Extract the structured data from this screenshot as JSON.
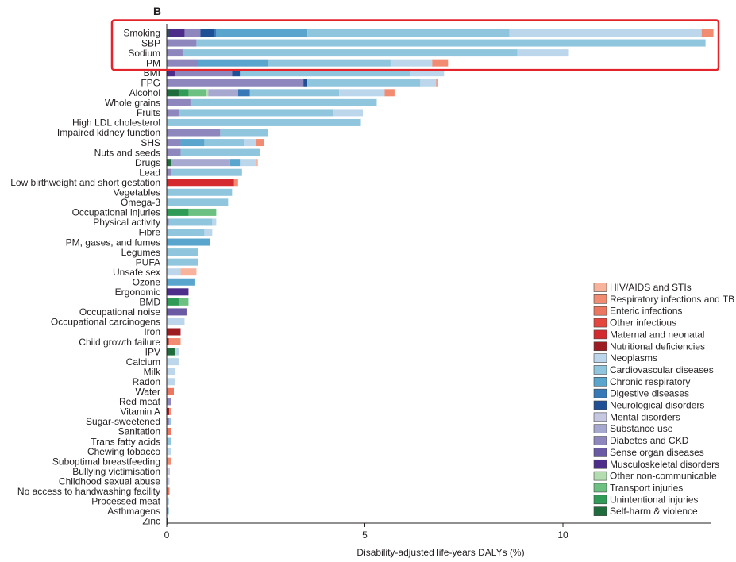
{
  "panel_label": "B",
  "chart_data": {
    "type": "bar",
    "stacked": true,
    "orientation": "horizontal",
    "xlabel": "Disability-adjusted life-years DALYs (%)",
    "xlim": [
      0,
      13.8
    ],
    "xticks": [
      0,
      5,
      10
    ],
    "grid": false,
    "legend_position": "bottom-right",
    "highlight": {
      "rows": [
        "Smoking",
        "SBP",
        "Sodium",
        "PM"
      ],
      "color": "#e3242b"
    },
    "causes": [
      {
        "name": "HIV/AIDS and STIs",
        "color": "#f7b39c"
      },
      {
        "name": "Respiratory infections and TB",
        "color": "#f18c73"
      },
      {
        "name": "Enteric infections",
        "color": "#ec7761"
      },
      {
        "name": "Other infectious",
        "color": "#e4453c"
      },
      {
        "name": "Maternal and neonatal",
        "color": "#d42a2f"
      },
      {
        "name": "Nutritional deficiencies",
        "color": "#9d1c22"
      },
      {
        "name": "Neoplasms",
        "color": "#bcd7ec"
      },
      {
        "name": "Cardiovascular diseases",
        "color": "#90c6dd"
      },
      {
        "name": "Chronic respiratory",
        "color": "#5aa5cd"
      },
      {
        "name": "Digestive diseases",
        "color": "#3779b6"
      },
      {
        "name": "Neurological disorders",
        "color": "#1f4f95"
      },
      {
        "name": "Mental disorders",
        "color": "#c6c8e2"
      },
      {
        "name": "Substance use",
        "color": "#a7a8d0"
      },
      {
        "name": "Diabetes and CKD",
        "color": "#8e87bd"
      },
      {
        "name": "Sense organ diseases",
        "color": "#6a5aa4"
      },
      {
        "name": "Musculoskeletal disorders",
        "color": "#4d2c8a"
      },
      {
        "name": "Other non-communicable",
        "color": "#b3dcb1"
      },
      {
        "name": "Transport injuries",
        "color": "#6cc182"
      },
      {
        "name": "Unintentional injuries",
        "color": "#2f9b57"
      },
      {
        "name": "Self-harm & violence",
        "color": "#1f6b3b"
      }
    ],
    "risks": [
      {
        "name": "Smoking",
        "segments": [
          [
            "Self-harm & violence",
            0.05
          ],
          [
            "Musculoskeletal disorders",
            0.4
          ],
          [
            "Diabetes and CKD",
            0.4
          ],
          [
            "Neurological disorders",
            0.35
          ],
          [
            "Digestive diseases",
            0.05
          ],
          [
            "Chronic respiratory",
            2.3
          ],
          [
            "Cardiovascular diseases",
            5.1
          ],
          [
            "Neoplasms",
            4.85
          ],
          [
            "Respiratory infections and TB",
            0.3
          ]
        ]
      },
      {
        "name": "SBP",
        "segments": [
          [
            "Diabetes and CKD",
            0.75
          ],
          [
            "Cardiovascular diseases",
            12.85
          ]
        ]
      },
      {
        "name": "Sodium",
        "segments": [
          [
            "Diabetes and CKD",
            0.4
          ],
          [
            "Cardiovascular diseases",
            8.45
          ],
          [
            "Neoplasms",
            1.3
          ]
        ]
      },
      {
        "name": "PM",
        "segments": [
          [
            "Diabetes and CKD",
            0.8
          ],
          [
            "Chronic respiratory",
            1.75
          ],
          [
            "Cardiovascular diseases",
            3.1
          ],
          [
            "Neoplasms",
            1.05
          ],
          [
            "Respiratory infections and TB",
            0.4
          ]
        ]
      },
      {
        "name": "BMI",
        "segments": [
          [
            "Musculoskeletal disorders",
            0.2
          ],
          [
            "Diabetes and CKD",
            1.45
          ],
          [
            "Neurological disorders",
            0.2
          ],
          [
            "Cardiovascular diseases",
            4.3
          ],
          [
            "Neoplasms",
            0.85
          ]
        ]
      },
      {
        "name": "FPG",
        "segments": [
          [
            "Diabetes and CKD",
            3.45
          ],
          [
            "Neurological disorders",
            0.1
          ],
          [
            "Cardiovascular diseases",
            2.85
          ],
          [
            "Neoplasms",
            0.4
          ],
          [
            "Respiratory infections and TB",
            0.05
          ]
        ]
      },
      {
        "name": "Alcohol",
        "segments": [
          [
            "Self-harm & violence",
            0.3
          ],
          [
            "Unintentional injuries",
            0.25
          ],
          [
            "Transport injuries",
            0.45
          ],
          [
            "Other non-communicable",
            0.05
          ],
          [
            "Substance use",
            0.75
          ],
          [
            "Digestive diseases",
            0.3
          ],
          [
            "Cardiovascular diseases",
            2.25
          ],
          [
            "Neoplasms",
            1.15
          ],
          [
            "Respiratory infections and TB",
            0.25
          ]
        ]
      },
      {
        "name": "Whole grains",
        "segments": [
          [
            "Diabetes and CKD",
            0.6
          ],
          [
            "Cardiovascular diseases",
            4.7
          ]
        ]
      },
      {
        "name": "Fruits",
        "segments": [
          [
            "Diabetes and CKD",
            0.3
          ],
          [
            "Cardiovascular diseases",
            3.9
          ],
          [
            "Neoplasms",
            0.75
          ]
        ]
      },
      {
        "name": "High LDL cholesterol",
        "segments": [
          [
            "Cardiovascular diseases",
            4.9
          ]
        ]
      },
      {
        "name": "Impaired kidney function",
        "segments": [
          [
            "Diabetes and CKD",
            1.35
          ],
          [
            "Cardiovascular diseases",
            1.2
          ]
        ]
      },
      {
        "name": "SHS",
        "segments": [
          [
            "Diabetes and CKD",
            0.35
          ],
          [
            "Chronic respiratory",
            0.6
          ],
          [
            "Cardiovascular diseases",
            1.0
          ],
          [
            "Neoplasms",
            0.3
          ],
          [
            "Respiratory infections and TB",
            0.2
          ]
        ]
      },
      {
        "name": "Nuts and seeds",
        "segments": [
          [
            "Diabetes and CKD",
            0.35
          ],
          [
            "Cardiovascular diseases",
            2.0
          ]
        ]
      },
      {
        "name": "Drugs",
        "segments": [
          [
            "Self-harm & violence",
            0.1
          ],
          [
            "Substance use",
            1.5
          ],
          [
            "Chronic respiratory",
            0.25
          ],
          [
            "Neoplasms",
            0.4
          ],
          [
            "HIV/AIDS and STIs",
            0.05
          ]
        ]
      },
      {
        "name": "Lead",
        "segments": [
          [
            "Diabetes and CKD",
            0.1
          ],
          [
            "Cardiovascular diseases",
            1.8
          ]
        ]
      },
      {
        "name": "Low birthweight and short gestation",
        "segments": [
          [
            "Maternal and neonatal",
            1.7
          ],
          [
            "Respiratory infections and TB",
            0.1
          ]
        ]
      },
      {
        "name": "Vegetables",
        "segments": [
          [
            "Cardiovascular diseases",
            1.65
          ]
        ]
      },
      {
        "name": "Omega-3",
        "segments": [
          [
            "Cardiovascular diseases",
            1.55
          ]
        ]
      },
      {
        "name": "Occupational injuries",
        "segments": [
          [
            "Unintentional injuries",
            0.55
          ],
          [
            "Transport injuries",
            0.7
          ]
        ]
      },
      {
        "name": "Physical activity",
        "segments": [
          [
            "Diabetes and CKD",
            0.05
          ],
          [
            "Cardiovascular diseases",
            1.1
          ],
          [
            "Neoplasms",
            0.1
          ]
        ]
      },
      {
        "name": "Fibre",
        "segments": [
          [
            "Cardiovascular diseases",
            0.95
          ],
          [
            "Neoplasms",
            0.2
          ]
        ]
      },
      {
        "name": "PM, gases, and fumes",
        "segments": [
          [
            "Chronic respiratory",
            1.1
          ]
        ]
      },
      {
        "name": "Legumes",
        "segments": [
          [
            "Cardiovascular diseases",
            0.8
          ]
        ]
      },
      {
        "name": "PUFA",
        "segments": [
          [
            "Cardiovascular diseases",
            0.8
          ]
        ]
      },
      {
        "name": "Unsafe sex",
        "segments": [
          [
            "Neoplasms",
            0.35
          ],
          [
            "HIV/AIDS and STIs",
            0.4
          ]
        ]
      },
      {
        "name": "Ozone",
        "segments": [
          [
            "Chronic respiratory",
            0.7
          ]
        ]
      },
      {
        "name": "Ergonomic",
        "segments": [
          [
            "Musculoskeletal disorders",
            0.55
          ]
        ]
      },
      {
        "name": "BMD",
        "segments": [
          [
            "Unintentional injuries",
            0.3
          ],
          [
            "Transport injuries",
            0.25
          ]
        ]
      },
      {
        "name": "Occupational noise",
        "segments": [
          [
            "Sense organ diseases",
            0.5
          ]
        ]
      },
      {
        "name": "Occupational carcinogens",
        "segments": [
          [
            "Neoplasms",
            0.45
          ]
        ]
      },
      {
        "name": "Iron",
        "segments": [
          [
            "Nutritional deficiencies",
            0.35
          ]
        ]
      },
      {
        "name": "Child growth failure",
        "segments": [
          [
            "Nutritional deficiencies",
            0.05
          ],
          [
            "Respiratory infections and TB",
            0.3
          ]
        ]
      },
      {
        "name": "IPV",
        "segments": [
          [
            "Self-harm & violence",
            0.2
          ],
          [
            "Neoplasms",
            0.1
          ]
        ]
      },
      {
        "name": "Calcium",
        "segments": [
          [
            "Neoplasms",
            0.3
          ]
        ]
      },
      {
        "name": "Milk",
        "segments": [
          [
            "Neoplasms",
            0.22
          ]
        ]
      },
      {
        "name": "Radon",
        "segments": [
          [
            "Neoplasms",
            0.2
          ]
        ]
      },
      {
        "name": "Water",
        "segments": [
          [
            "Enteric infections",
            0.18
          ]
        ]
      },
      {
        "name": "Red meat",
        "segments": [
          [
            "Diabetes and CKD",
            0.12
          ]
        ]
      },
      {
        "name": "Vitamin A",
        "segments": [
          [
            "Nutritional deficiencies",
            0.06
          ],
          [
            "Respiratory infections and TB",
            0.06
          ]
        ]
      },
      {
        "name": "Sugar-sweetened",
        "segments": [
          [
            "Diabetes and CKD",
            0.06
          ],
          [
            "Cardiovascular diseases",
            0.06
          ]
        ]
      },
      {
        "name": "Sanitation",
        "segments": [
          [
            "Enteric infections",
            0.12
          ]
        ]
      },
      {
        "name": "Trans fatty acids",
        "segments": [
          [
            "Cardiovascular diseases",
            0.1
          ]
        ]
      },
      {
        "name": "Chewing tobacco",
        "segments": [
          [
            "Neoplasms",
            0.1
          ]
        ]
      },
      {
        "name": "Suboptimal breastfeeding",
        "segments": [
          [
            "Respiratory infections and TB",
            0.1
          ]
        ]
      },
      {
        "name": "Bullying victimisation",
        "segments": [
          [
            "Mental disorders",
            0.08
          ]
        ]
      },
      {
        "name": "Childhood sexual abuse",
        "segments": [
          [
            "Mental disorders",
            0.07
          ]
        ]
      },
      {
        "name": "No access to handwashing facility",
        "segments": [
          [
            "Enteric infections",
            0.07
          ]
        ]
      },
      {
        "name": "Processed meat",
        "segments": [
          [
            "Neoplasms",
            0.06
          ]
        ]
      },
      {
        "name": "Asthmagens",
        "segments": [
          [
            "Chronic respiratory",
            0.05
          ]
        ]
      },
      {
        "name": "Zinc",
        "segments": [
          [
            "Nutritional deficiencies",
            0.03
          ]
        ]
      }
    ]
  }
}
